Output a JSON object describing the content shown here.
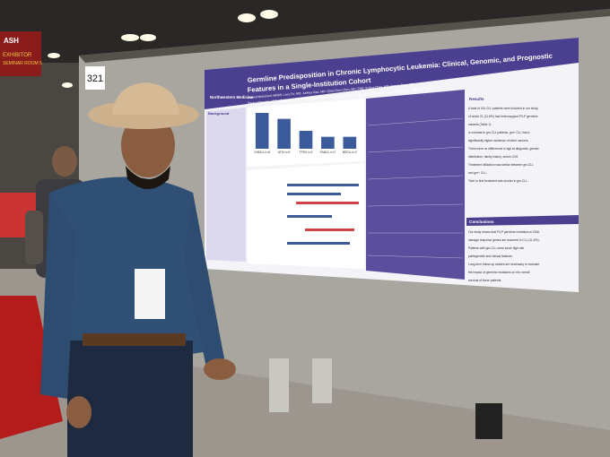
{
  "sign": {
    "brand": "ASH",
    "line1": "EXHIBITOR",
    "line2": "SEMINAR ROOM 5"
  },
  "board_number": "321",
  "poster": {
    "title_line1": "Germline Predisposition in Chronic Lymphocytic Leukemia: Clinical, Genomic, and Prognostic",
    "title_line2": "Features in a Single-Institution Cohort",
    "authors": "Ahmed Mohamed, MBBS; Lucy Fu, MD; Junhua Gao, MD; Qing Chen Chen, MD, PhD; Yi-Hua Chen, MD; Hamza Tariq, MD",
    "department": "Department of Pathology, Northwestern University Feinberg School of Medicine, Chicago, Illinois, USA",
    "logo": "Northwestern Medicine",
    "sections": {
      "background": "Background",
      "results": "Results",
      "conclusions": "Conclusions"
    },
    "results_text": [
      "A total of 181 CLL patients were included in our study,",
      "of which 21 (11.6%) had heterozygous P/LP germline",
      "variants (Table 1).",
      "In contrast to gm-CLL patients, gm+ CLL had a",
      "significantly higher incidence of other cancers.",
      "There were no differences in age at diagnosis, gender",
      "distribution, family history, serum LDH.",
      "Treatment utilization was similar between gm-CLL",
      "and gm+ CLL.",
      "Time to first treatment was shorter in gm-CLL."
    ],
    "conclusions_text": [
      "Our study shows that P/LP germline mutations in DNA",
      "damage response genes are recurrent in CLL (11.6%).",
      "Patients with gm-CLL show some high-risk",
      "pathogenetic and clinical features.",
      "Long-term follow-up studies are necessary to evaluate",
      "the impact of germline mutations on the overall",
      "survival of these patients."
    ],
    "chart": {
      "categories": [
        "CHEK2 n=6",
        "ATM n=5",
        "TP53 n=3",
        "FANCL n=2",
        "BRCA n=2"
      ],
      "values": [
        6,
        5,
        3,
        2,
        2
      ],
      "ylim": [
        0,
        6
      ],
      "color": "#3b5b9a"
    }
  }
}
